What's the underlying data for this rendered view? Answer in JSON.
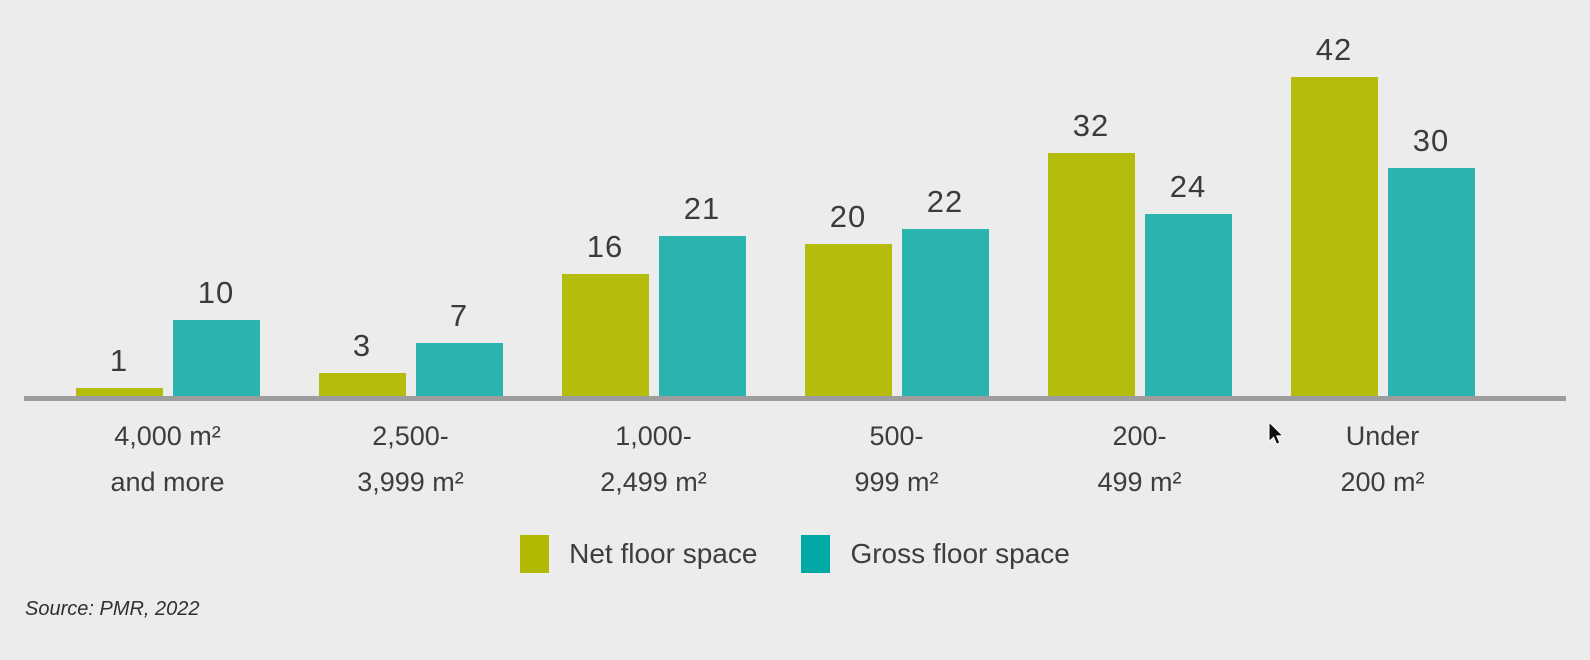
{
  "chart_data": {
    "type": "bar",
    "title": "",
    "xlabel": "",
    "ylabel": "",
    "categories": [
      "4,000 m² and more",
      "2,500-3,999 m²",
      "1,000-2,499 m²",
      "500-999 m²",
      "200-499 m²",
      "Under 200 m²"
    ],
    "categories_lines": [
      [
        "4,000 m²",
        "and more"
      ],
      [
        "2,500-",
        "3,999 m²"
      ],
      [
        "1,000-",
        "2,499 m²"
      ],
      [
        "500-",
        "999 m²"
      ],
      [
        "200-",
        "499 m²"
      ],
      [
        "Under",
        "200 m²"
      ]
    ],
    "series": [
      {
        "name": "Net floor space",
        "color": "#b4bd0c",
        "legend_color": "#b1ba00",
        "values": [
          1,
          3,
          16,
          20,
          32,
          42
        ]
      },
      {
        "name": "Gross floor space",
        "color": "#2bb3b0",
        "legend_color": "#00a9a5",
        "values": [
          10,
          7,
          21,
          22,
          24,
          30
        ]
      }
    ],
    "ylim": [
      0,
      42
    ],
    "grid": false,
    "value_labels": true,
    "legend_position": "bottom-center"
  },
  "source_note": "Source: PMR, 2022",
  "colors": {
    "background": "#ececec",
    "axis_line": "#9d9d9d",
    "label_text": "#3d3d3d",
    "cursor": "#111111"
  }
}
